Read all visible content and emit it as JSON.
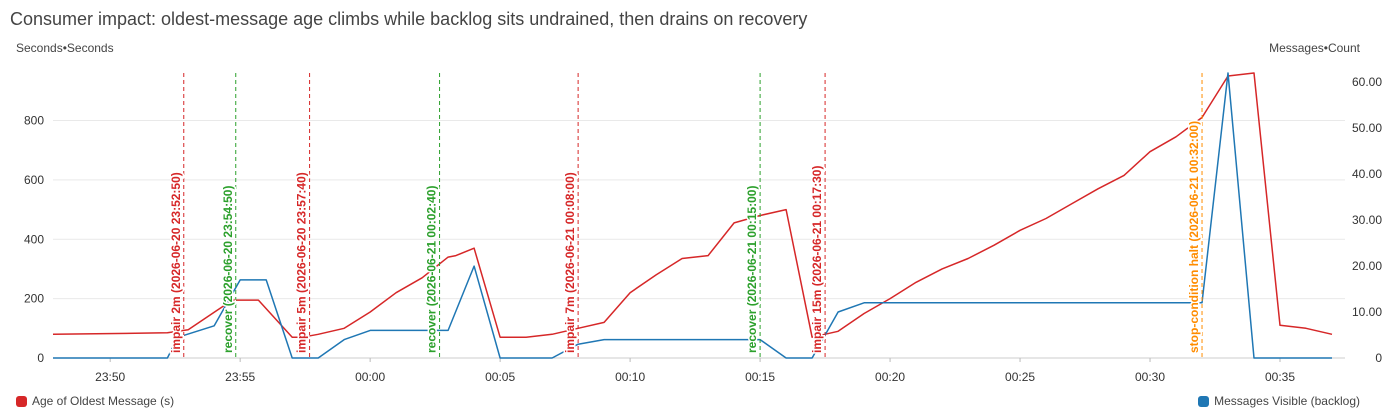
{
  "title": "Consumer impact: oldest-message age climbs while backlog sits undrained, then drains on recovery",
  "chart_data": {
    "type": "line",
    "x_ticks": [
      "23:50",
      "23:55",
      "00:00",
      "00:05",
      "00:10",
      "00:15",
      "00:20",
      "00:25",
      "00:30",
      "00:35"
    ],
    "x_tick_minutes": [
      -10,
      -5,
      0,
      5,
      10,
      15,
      20,
      25,
      30,
      35
    ],
    "x_range_minutes": [
      -12.2,
      37.5
    ],
    "left_axis": {
      "label": "Seconds•Seconds",
      "range": [
        0,
        960
      ],
      "ticks": [
        0,
        200,
        400,
        600,
        800
      ],
      "tick_labels": [
        "0",
        "200",
        "400",
        "600",
        "800"
      ]
    },
    "right_axis": {
      "label": "Messages•Count",
      "range": [
        0,
        62
      ],
      "ticks": [
        0,
        10,
        20,
        30,
        40,
        50,
        60
      ],
      "tick_labels": [
        "0",
        "10.00",
        "20.00",
        "30.00",
        "40.00",
        "50.00",
        "60.00"
      ]
    },
    "grid": true,
    "series": [
      {
        "name": "Age of Oldest Message (s)",
        "axis": "left",
        "color": "#d62728",
        "x": [
          -12.2,
          -7.8,
          -7.4,
          -7.0,
          -5.9,
          -5.3,
          -5.0,
          -4.3,
          -3.0,
          -2.6,
          -2.0,
          -1.0,
          0.0,
          1.0,
          2.0,
          3.0,
          3.3,
          4.0,
          5.0,
          6.0,
          7.0,
          8.0,
          9.0,
          10.0,
          11.0,
          12.0,
          13.0,
          14.0,
          15.0,
          16.0,
          17.0,
          18.0,
          19.0,
          20.0,
          21.0,
          22.0,
          23.0,
          24.0,
          25.0,
          26.0,
          27.0,
          28.0,
          29.0,
          30.0,
          31.0,
          32.0,
          33.0,
          34.0,
          35.0,
          36.0,
          37.0
        ],
        "values": [
          80,
          85,
          90,
          95,
          160,
          195,
          195,
          195,
          70,
          70,
          80,
          100,
          155,
          220,
          270,
          340,
          345,
          370,
          70,
          70,
          80,
          100,
          120,
          220,
          280,
          335,
          345,
          455,
          480,
          500,
          70,
          90,
          150,
          200,
          255,
          300,
          335,
          380,
          430,
          470,
          520,
          570,
          615,
          695,
          745,
          810,
          950,
          960,
          110,
          100,
          80
        ]
      },
      {
        "name": "Messages Visible (backlog)",
        "axis": "right",
        "color": "#1f77b4",
        "x": [
          -12.2,
          -8.0,
          -7.8,
          -7.4,
          -6.0,
          -5.3,
          -5.0,
          -4.0,
          -3.0,
          -2.0,
          -1.0,
          0.0,
          1.0,
          2.0,
          3.0,
          4.0,
          5.0,
          6.0,
          7.0,
          8.0,
          9.0,
          10.0,
          11.0,
          12.0,
          13.0,
          14.0,
          15.0,
          16.0,
          17.0,
          18.0,
          19.0,
          20.0,
          21.0,
          22.0,
          23.0,
          24.0,
          25.0,
          26.0,
          27.0,
          28.0,
          29.0,
          30.0,
          31.0,
          32.0,
          33.0,
          34.0,
          35.0,
          36.0,
          37.0
        ],
        "values": [
          0,
          0,
          0,
          4.5,
          7,
          14,
          17,
          17,
          0,
          0,
          4,
          6,
          6,
          6,
          6,
          20,
          0,
          0,
          0,
          3,
          4,
          4,
          4,
          4,
          4,
          4,
          4,
          0,
          0,
          10,
          12,
          12,
          12,
          12,
          12,
          12,
          12,
          12,
          12,
          12,
          12,
          12,
          12,
          12,
          62,
          0,
          0,
          0,
          0
        ]
      }
    ],
    "annotations": [
      {
        "label": "impair 2m (2026-06-20 23:52:50)",
        "x_minutes": -7.17,
        "color": "#d62728"
      },
      {
        "label": "recover (2026-06-20 23:54:50)",
        "x_minutes": -5.17,
        "color": "#2ca02c"
      },
      {
        "label": "impair 5m (2026-06-20 23:57:40)",
        "x_minutes": -2.33,
        "color": "#d62728"
      },
      {
        "label": "recover (2026-06-21 00:02:40)",
        "x_minutes": 2.67,
        "color": "#2ca02c"
      },
      {
        "label": "impair 7m (2026-06-21 00:08:00)",
        "x_minutes": 8.0,
        "color": "#d62728"
      },
      {
        "label": "recover (2026-06-21 00:15:00)",
        "x_minutes": 15.0,
        "color": "#2ca02c"
      },
      {
        "label": "impair 15m (2026-06-21 00:17:30)",
        "x_minutes": 17.5,
        "color": "#d62728"
      },
      {
        "label": "stop-condition halt (2026-06-21 00:32:00)",
        "x_minutes": 32.0,
        "color": "#ff8c00"
      }
    ]
  },
  "legend": {
    "left": {
      "label": "Age of Oldest Message (s)",
      "color": "#d62728"
    },
    "right": {
      "label": "Messages Visible (backlog)",
      "color": "#1f77b4"
    }
  }
}
